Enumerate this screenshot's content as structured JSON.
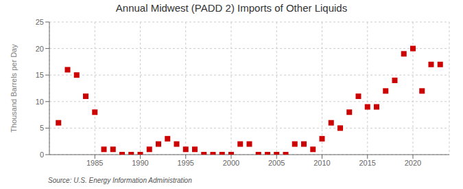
{
  "chart_data": {
    "type": "scatter",
    "title": "Annual Midwest (PADD 2) Imports of Other Liquids",
    "ylabel": "Thousand Barrels per Day",
    "annotation": "Source: U.S. Energy Information Administration",
    "color": "#cc0000",
    "marker": "square",
    "grid": true,
    "x": [
      1981,
      1982,
      1983,
      1984,
      1985,
      1986,
      1987,
      1988,
      1989,
      1990,
      1991,
      1992,
      1993,
      1994,
      1995,
      1996,
      1997,
      1998,
      1999,
      2000,
      2001,
      2002,
      2003,
      2004,
      2005,
      2006,
      2007,
      2008,
      2009,
      2010,
      2011,
      2012,
      2013,
      2014,
      2015,
      2016,
      2017,
      2018,
      2019,
      2020,
      2021,
      2022,
      2023
    ],
    "values": [
      6,
      16,
      15,
      11,
      8,
      1,
      1,
      0,
      0,
      0,
      1,
      2,
      3,
      2,
      1,
      1,
      0,
      0,
      0,
      0,
      2,
      2,
      0,
      0,
      0,
      0,
      2,
      2,
      1,
      3,
      6,
      5,
      8,
      11,
      9,
      9,
      12,
      14,
      19,
      20,
      12,
      17,
      17
    ],
    "xlim": [
      1980,
      2024
    ],
    "ylim": [
      0,
      25
    ],
    "xticks": [
      1985,
      1990,
      1995,
      2000,
      2005,
      2010,
      2015,
      2020
    ],
    "yticks": [
      0,
      5,
      10,
      15,
      20,
      25
    ]
  }
}
